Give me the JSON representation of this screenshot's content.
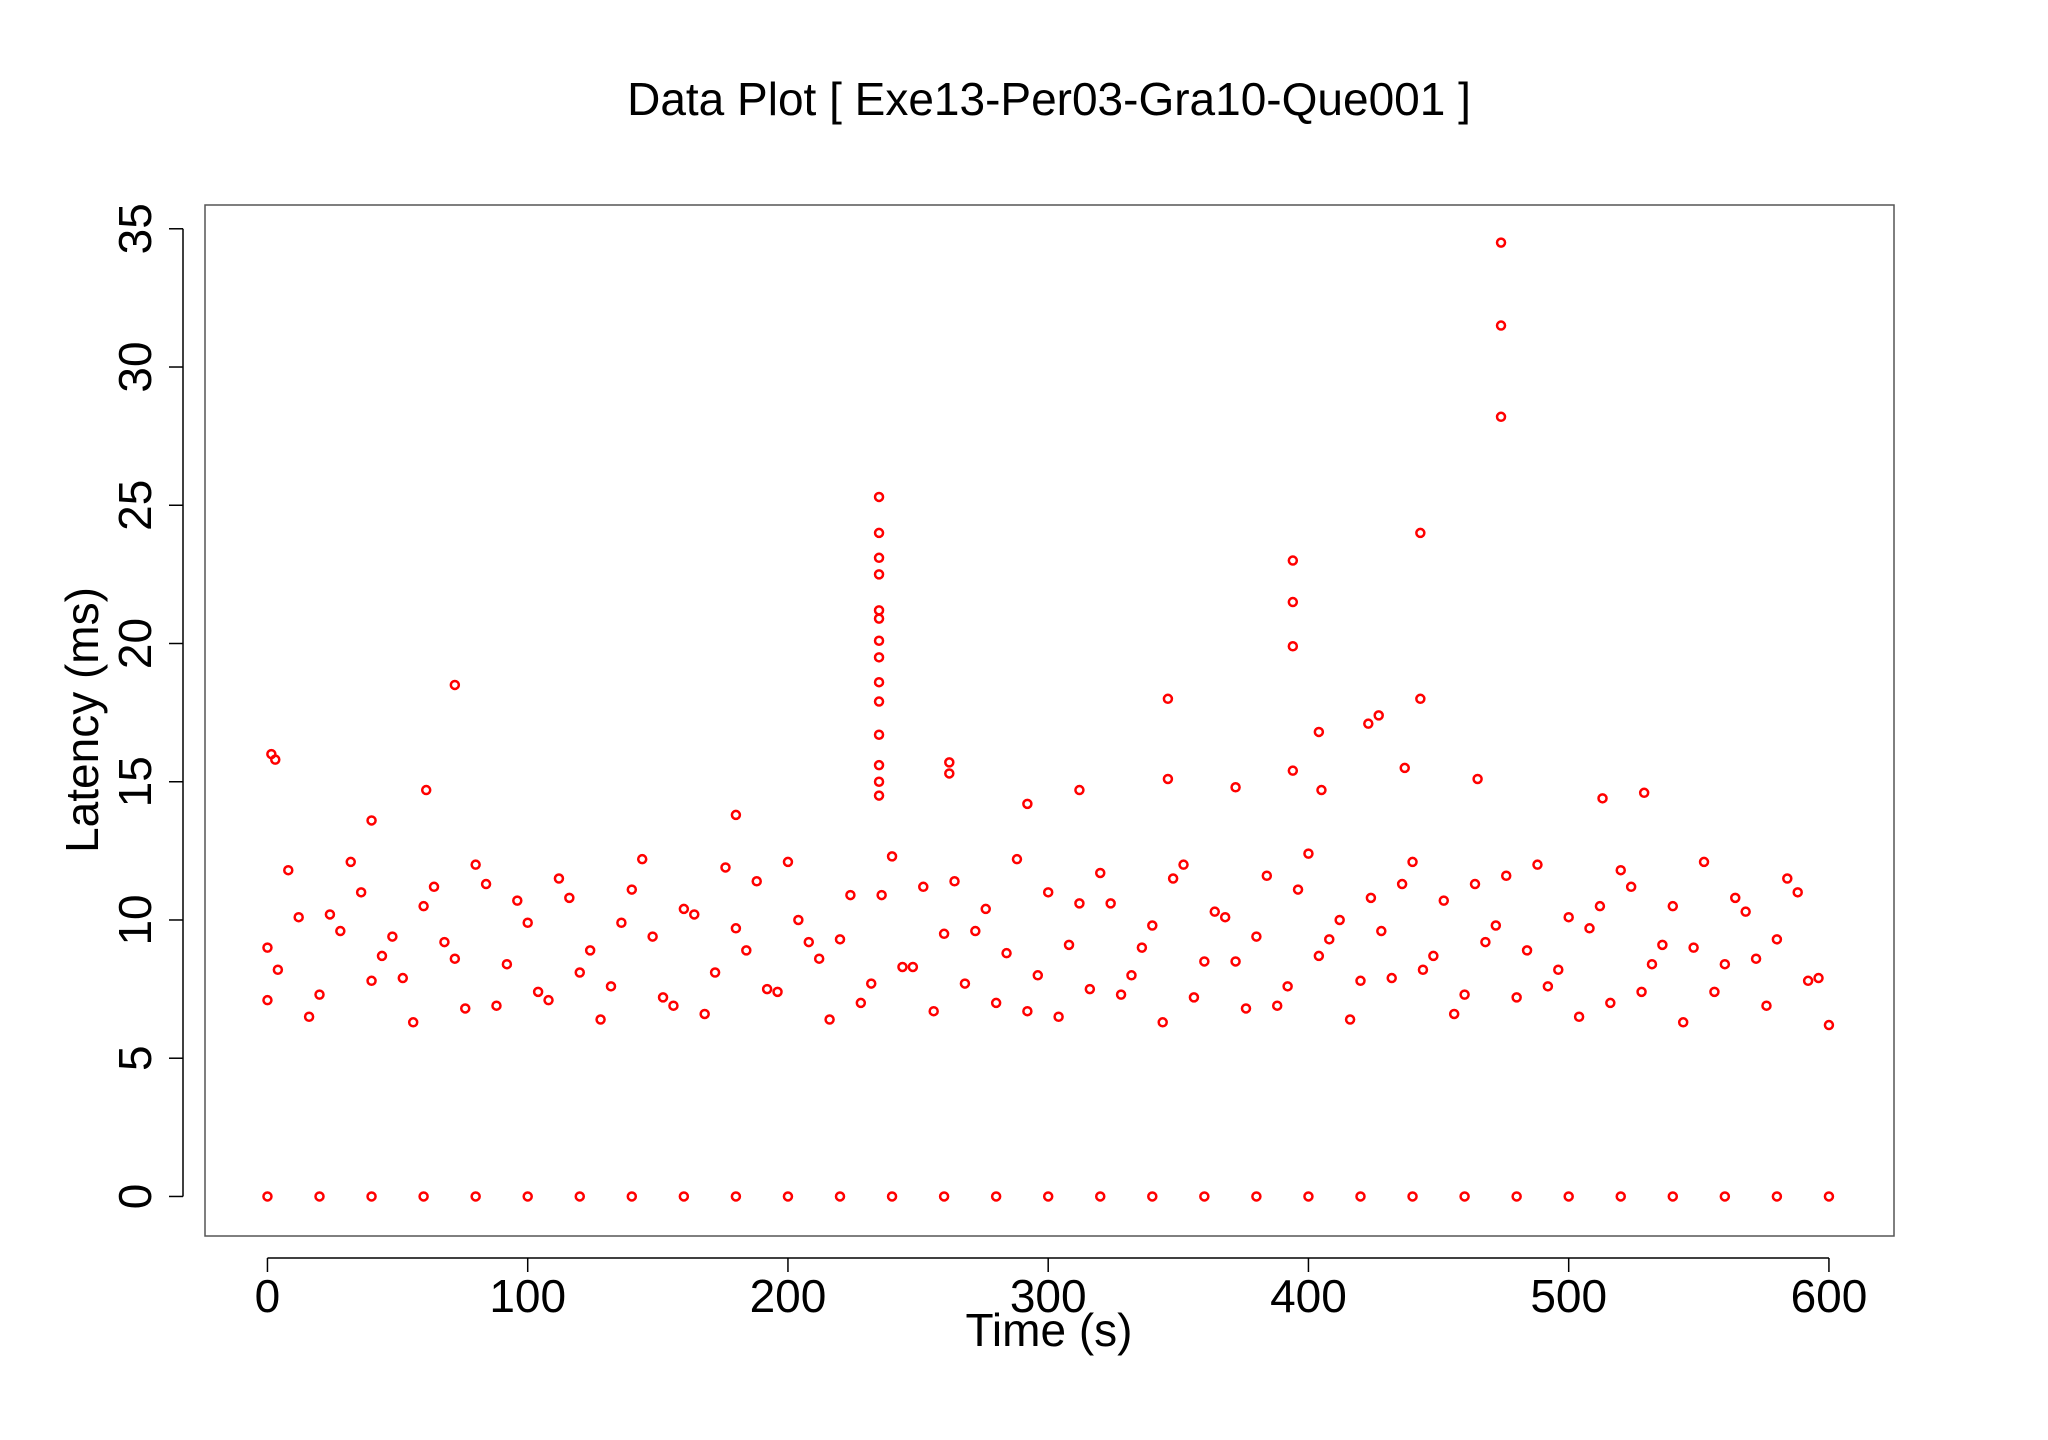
{
  "chart_data": {
    "type": "scatter",
    "title": "Data Plot [ Exe13-Per03-Gra10-Que001 ]",
    "xlabel": "Time (s)",
    "ylabel": "Latency (ms)",
    "color": "#ff0000",
    "xlim": [
      -24,
      625
    ],
    "ylim": [
      -1.43,
      35.86
    ],
    "xticks": [
      0,
      100,
      200,
      300,
      400,
      500,
      600
    ],
    "yticks": [
      0,
      5,
      10,
      15,
      20,
      25,
      30,
      35
    ],
    "grid": false,
    "x": [
      1.5,
      3,
      72,
      235,
      235,
      235,
      235,
      235,
      235,
      235,
      235,
      235,
      235,
      235,
      235,
      235,
      235,
      262,
      262,
      346,
      346,
      394,
      394,
      394,
      394,
      404,
      405,
      423,
      427,
      437,
      443,
      443,
      474,
      474,
      474,
      312,
      292,
      372,
      465,
      513,
      529,
      61,
      40,
      180,
      0,
      8,
      16,
      24,
      32,
      40,
      48,
      56,
      64,
      72,
      80,
      88,
      96,
      104,
      112,
      120,
      128,
      136,
      144,
      152,
      160,
      168,
      176,
      184,
      192,
      200,
      208,
      216,
      224,
      232,
      240,
      248,
      256,
      264,
      272,
      280,
      288,
      296,
      304,
      312,
      320,
      328,
      336,
      344,
      352,
      360,
      368,
      376,
      384,
      392,
      400,
      408,
      416,
      424,
      432,
      440,
      448,
      456,
      464,
      472,
      480,
      488,
      496,
      504,
      512,
      520,
      528,
      536,
      544,
      552,
      560,
      568,
      576,
      584,
      592,
      600,
      0,
      4,
      12,
      20,
      28,
      36,
      44,
      52,
      60,
      68,
      76,
      84,
      92,
      100,
      108,
      116,
      124,
      132,
      140,
      148,
      156,
      164,
      172,
      180,
      188,
      196,
      204,
      212,
      220,
      228,
      236,
      244,
      252,
      260,
      268,
      276,
      284,
      292,
      300,
      308,
      316,
      324,
      332,
      340,
      348,
      356,
      364,
      372,
      380,
      388,
      396,
      404,
      412,
      420,
      428,
      436,
      444,
      452,
      460,
      468,
      476,
      484,
      492,
      500,
      508,
      516,
      524,
      532,
      540,
      548,
      556,
      564,
      572,
      580,
      588,
      596,
      0,
      20,
      40,
      60,
      80,
      100,
      120,
      140,
      160,
      180,
      200,
      220,
      240,
      260,
      280,
      300,
      320,
      340,
      360,
      380,
      400,
      420,
      440,
      460,
      480,
      500,
      520,
      540,
      560,
      580,
      600
    ],
    "y": [
      16,
      15.8,
      18.5,
      25.3,
      24,
      23.1,
      22.5,
      21.2,
      20.9,
      20.1,
      19.5,
      18.6,
      17.9,
      16.7,
      15.6,
      15,
      14.5,
      15.7,
      15.3,
      18,
      15.1,
      23,
      21.5,
      19.9,
      15.4,
      16.8,
      14.7,
      17.1,
      17.4,
      15.5,
      24,
      18,
      34.5,
      31.5,
      28.2,
      14.7,
      14.2,
      14.8,
      15.1,
      14.4,
      14.6,
      14.7,
      13.6,
      13.8,
      7.1,
      11.8,
      6.5,
      10.2,
      12.1,
      7.8,
      9.4,
      6.3,
      11.2,
      8.6,
      12.0,
      6.9,
      10.7,
      7.4,
      11.5,
      8.1,
      6.4,
      9.9,
      12.2,
      7.2,
      10.4,
      6.6,
      11.9,
      8.9,
      7.5,
      12.1,
      9.2,
      6.4,
      10.9,
      7.7,
      12.3,
      8.3,
      6.7,
      11.4,
      9.6,
      7.0,
      12.2,
      8.0,
      6.5,
      10.6,
      11.7,
      7.3,
      9.0,
      6.3,
      12.0,
      8.5,
      10.1,
      6.8,
      11.6,
      7.6,
      12.4,
      9.3,
      6.4,
      10.8,
      7.9,
      12.1,
      8.7,
      6.6,
      11.3,
      9.8,
      7.2,
      12.0,
      8.2,
      6.5,
      10.5,
      11.8,
      7.4,
      9.1,
      6.3,
      12.1,
      8.4,
      10.3,
      6.9,
      11.5,
      7.8,
      6.2,
      9.0,
      8.2,
      10.1,
      7.3,
      9.6,
      11.0,
      8.7,
      7.9,
      10.5,
      9.2,
      6.8,
      11.3,
      8.4,
      9.9,
      7.1,
      10.8,
      8.9,
      7.6,
      11.1,
      9.4,
      6.9,
      10.2,
      8.1,
      9.7,
      11.4,
      7.4,
      10.0,
      8.6,
      9.3,
      7.0,
      10.9,
      8.3,
      11.2,
      9.5,
      7.7,
      10.4,
      8.8,
      6.7,
      11.0,
      9.1,
      7.5,
      10.6,
      8.0,
      9.8,
      11.5,
      7.2,
      10.3,
      8.5,
      9.4,
      6.9,
      11.1,
      8.7,
      10.0,
      7.8,
      9.6,
      11.3,
      8.2,
      10.7,
      7.3,
      9.2,
      11.6,
      8.9,
      7.6,
      10.1,
      9.7,
      7.0,
      11.2,
      8.4,
      10.5,
      9.0,
      7.4,
      10.8,
      8.6,
      9.3,
      11.0,
      7.9,
      0,
      0,
      0,
      0,
      0,
      0,
      0,
      0,
      0,
      0,
      0,
      0,
      0,
      0,
      0,
      0,
      0,
      0,
      0,
      0,
      0,
      0,
      0,
      0,
      0,
      0,
      0,
      0,
      0,
      0,
      0
    ]
  }
}
